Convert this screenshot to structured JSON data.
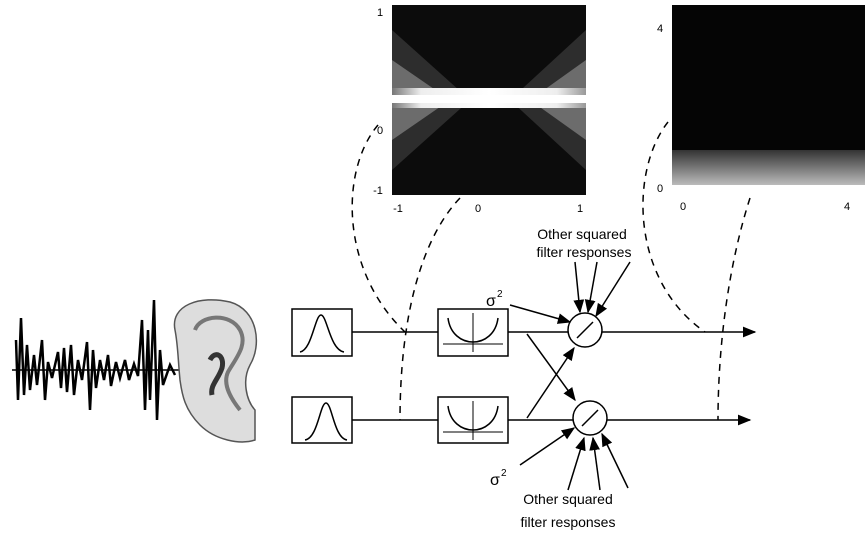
{
  "plots": [
    {
      "yticks": [
        "1",
        "0",
        "-1"
      ],
      "xticks": [
        "-1",
        "0",
        "1"
      ]
    },
    {
      "yticks": [
        "4",
        "0"
      ],
      "xticks": [
        "0",
        "4"
      ]
    }
  ],
  "labels": {
    "top": [
      "Other squared",
      "filter responses"
    ],
    "bottom": [
      "Other squared",
      "filter responses"
    ]
  },
  "sigma": [
    {
      "symbol": "σ",
      "exponent": "2"
    },
    {
      "symbol": "σ",
      "exponent": "2"
    }
  ]
}
